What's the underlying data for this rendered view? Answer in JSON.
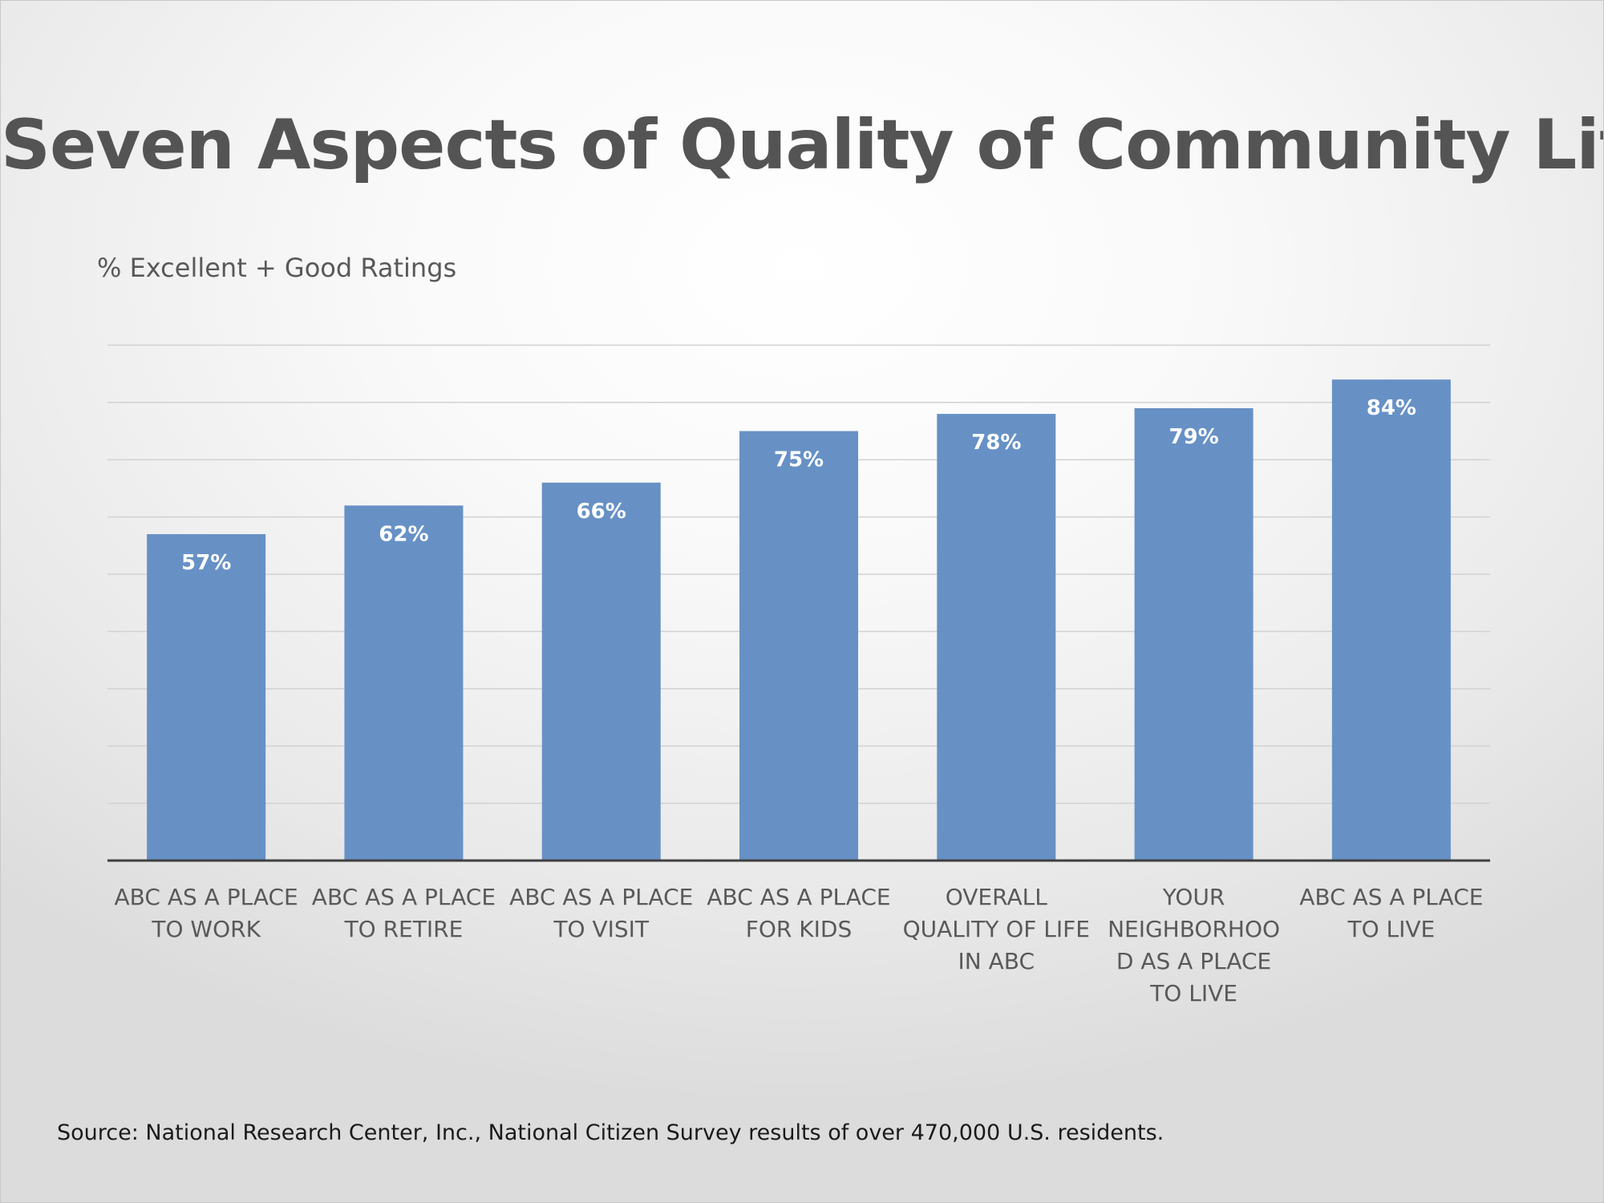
{
  "title": "Seven Aspects of Quality of Community Life",
  "subtitle": "% Excellent + Good Ratings",
  "source": "Source: National Research Center, Inc., National Citizen Survey results of over 470,000 U.S. residents.",
  "colors": {
    "bar": "#6791c5",
    "bar_label": "#ffffff",
    "gridline": "#d2d2d2",
    "axis": "#404040",
    "title": "#545454",
    "text": "#595959"
  },
  "chart_data": {
    "type": "bar",
    "title": "Seven Aspects of Quality of Community Life",
    "ylabel": "% Excellent + Good Ratings",
    "xlabel": "",
    "categories": [
      "ABC AS A PLACE TO WORK",
      "ABC AS A PLACE TO RETIRE",
      "ABC AS A PLACE TO VISIT",
      "ABC AS A PLACE FOR KIDS",
      "OVERALL QUALITY OF LIFE IN ABC",
      "YOUR NEIGHBORHOOD AS A PLACE TO LIVE",
      "ABC AS A PLACE TO LIVE"
    ],
    "values": [
      57,
      62,
      66,
      75,
      78,
      79,
      84
    ],
    "data_labels": [
      "57%",
      "62%",
      "66%",
      "75%",
      "78%",
      "79%",
      "84%"
    ],
    "unit": "%",
    "ylim": [
      0,
      90
    ],
    "gridlines": true,
    "gridline_step": 10,
    "y_tick_labels_shown": false,
    "legend": "none"
  }
}
